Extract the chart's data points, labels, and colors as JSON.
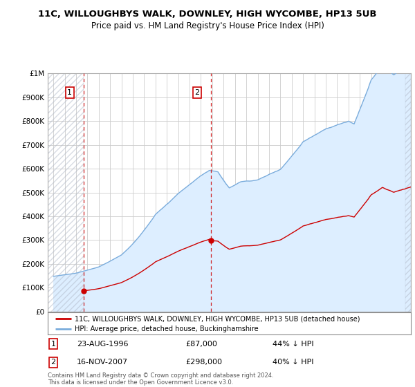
{
  "title": "11C, WILLOUGHBYS WALK, DOWNLEY, HIGH WYCOMBE, HP13 5UB",
  "subtitle": "Price paid vs. HM Land Registry's House Price Index (HPI)",
  "legend_line1": "11C, WILLOUGHBYS WALK, DOWNLEY, HIGH WYCOMBE, HP13 5UB (detached house)",
  "legend_line2": "HPI: Average price, detached house, Buckinghamshire",
  "footnote": "Contains HM Land Registry data © Crown copyright and database right 2024.\nThis data is licensed under the Open Government Licence v3.0.",
  "transaction1_date": "23-AUG-1996",
  "transaction1_price": 87000,
  "transaction1_note": "44% ↓ HPI",
  "transaction1_year": 1996.64,
  "transaction2_date": "16-NOV-2007",
  "transaction2_price": 298000,
  "transaction2_note": "40% ↓ HPI",
  "transaction2_year": 2007.875,
  "hpi_color": "#7aacdc",
  "hpi_fill_color": "#ddeeff",
  "price_color": "#cc0000",
  "vline_color": "#cc0000",
  "background_color": "#ffffff",
  "grid_color": "#cccccc",
  "ylim_max": 1000000,
  "xlim_min": 1993.5,
  "xlim_max": 2025.5
}
